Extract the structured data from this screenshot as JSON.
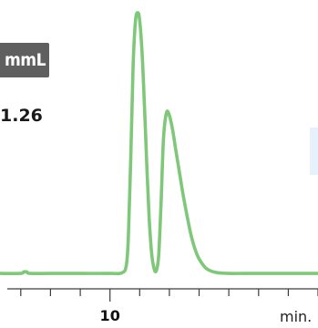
{
  "header": {
    "badge_text": "mmL",
    "stat_value": "1.26"
  },
  "colors": {
    "trace": "#7fc87a",
    "axis": "#3c3c3c",
    "badge_bg": "#5f5f5f",
    "side_tab": "#e6f1fb"
  },
  "chart_data": {
    "type": "line",
    "title": "",
    "xlabel": "min.",
    "ylabel": "",
    "xlim": [
      6.3,
      17.0
    ],
    "ylim": [
      0,
      100
    ],
    "x_tick_labels": [
      {
        "value": 10,
        "label": "10"
      }
    ],
    "x_minor_ticks": [
      7,
      8,
      9,
      10,
      11,
      12,
      13,
      14,
      15,
      16,
      17
    ],
    "grid": false,
    "legend": "none",
    "series": [
      {
        "values_x": [
          6.3,
          7.0,
          7.1,
          7.2,
          7.3,
          8.0,
          9.0,
          10.0,
          10.4,
          10.55,
          10.62,
          10.7,
          10.78,
          10.86,
          10.94,
          11.0,
          11.08,
          11.16,
          11.24,
          11.32,
          11.4,
          11.48,
          11.56,
          11.64,
          11.72,
          11.8,
          11.9,
          12.0,
          12.1,
          12.2,
          12.3,
          12.4,
          12.5,
          12.6,
          12.7,
          12.8,
          12.9,
          13.0,
          13.2,
          13.4,
          13.6,
          13.8,
          14.0,
          14.5,
          15.0,
          16.0,
          17.0
        ],
        "values_y": [
          1.0,
          1.0,
          1.6,
          1.6,
          1.0,
          1.0,
          1.0,
          1.0,
          1.2,
          4.0,
          15.0,
          45.0,
          80.0,
          97.0,
          100.0,
          97.0,
          85.0,
          65.0,
          42.0,
          22.0,
          9.0,
          3.0,
          2.0,
          8.0,
          28.0,
          52.0,
          62.0,
          61.0,
          56.0,
          49.0,
          42.0,
          35.0,
          28.5,
          22.5,
          17.0,
          12.5,
          9.0,
          6.5,
          3.3,
          1.9,
          1.3,
          1.1,
          1.0,
          1.0,
          1.0,
          1.0,
          1.0
        ]
      }
    ]
  }
}
